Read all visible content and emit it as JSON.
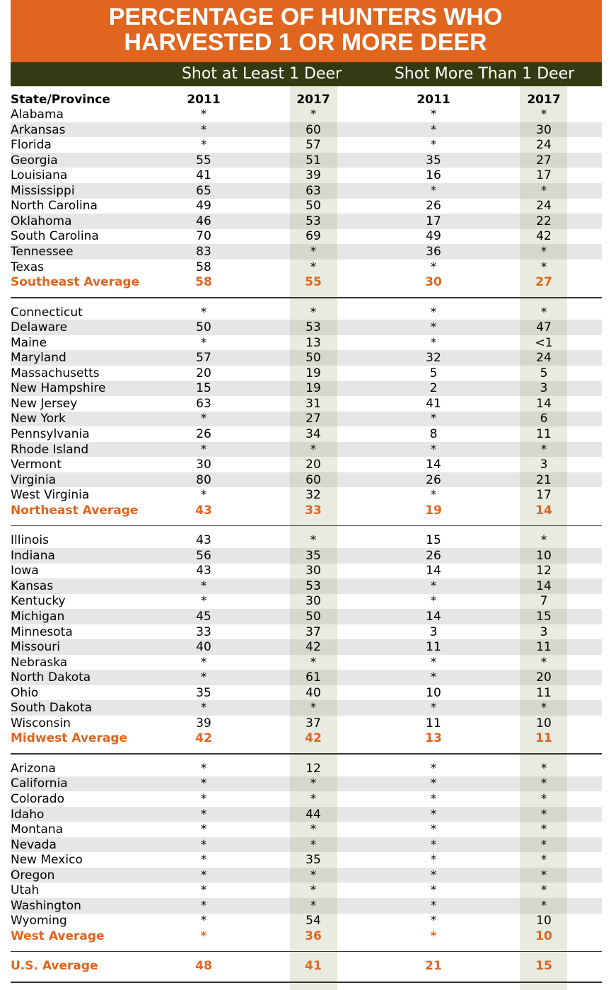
{
  "title": [
    "PERCENTAGE OF HUNTERS WHO",
    "HARVESTED 1 OR MORE DEER"
  ],
  "groups": [
    "Shot at Least 1 Deer",
    "Shot More Than 1 Deer"
  ],
  "columns": [
    "State/Province",
    "2011",
    "2017",
    "2011",
    "2017"
  ],
  "sections": [
    {
      "rows": [
        [
          "Alabama",
          "*",
          "*",
          "*",
          "*"
        ],
        [
          "Arkansas",
          "*",
          "60",
          "*",
          "30"
        ],
        [
          "Florida",
          "*",
          "57",
          "*",
          "24"
        ],
        [
          "Georgia",
          "55",
          "51",
          "35",
          "27"
        ],
        [
          "Louisiana",
          "41",
          "39",
          "16",
          "17"
        ],
        [
          "Mississippi",
          "65",
          "63",
          "*",
          "*"
        ],
        [
          "North Carolina",
          "49",
          "50",
          "26",
          "24"
        ],
        [
          "Oklahoma",
          "46",
          "53",
          "17",
          "22"
        ],
        [
          "South Carolina",
          "70",
          "69",
          "49",
          "42"
        ],
        [
          "Tennessee",
          "83",
          "*",
          "36",
          "*"
        ],
        [
          "Texas",
          "58",
          "*",
          "*",
          "*"
        ]
      ],
      "average": [
        "Southeast Average",
        "58",
        "55",
        "30",
        "27"
      ]
    },
    {
      "rows": [
        [
          "Connecticut",
          "*",
          "*",
          "*",
          "*"
        ],
        [
          "Delaware",
          "50",
          "53",
          "*",
          "47"
        ],
        [
          "Maine",
          "*",
          "13",
          "*",
          "<1"
        ],
        [
          "Maryland",
          "57",
          "50",
          "32",
          "24"
        ],
        [
          "Massachusetts",
          "20",
          "19",
          "5",
          "5"
        ],
        [
          "New Hampshire",
          "15",
          "19",
          "2",
          "3"
        ],
        [
          "New Jersey",
          "63",
          "31",
          "41",
          "14"
        ],
        [
          "New York",
          "*",
          "27",
          "*",
          "6"
        ],
        [
          "Pennsylvania",
          "26",
          "34",
          "8",
          "11"
        ],
        [
          "Rhode Island",
          "*",
          "*",
          "*",
          "*"
        ],
        [
          "Vermont",
          "30",
          "20",
          "14",
          "3"
        ],
        [
          "Virginia",
          "80",
          "60",
          "26",
          "21"
        ],
        [
          "West Virginia",
          "*",
          "32",
          "*",
          "17"
        ]
      ],
      "average": [
        "Northeast Average",
        "43",
        "33",
        "19",
        "14"
      ]
    },
    {
      "rows": [
        [
          "Illinois",
          "43",
          "*",
          "15",
          "*"
        ],
        [
          "Indiana",
          "56",
          "35",
          "26",
          "10"
        ],
        [
          "Iowa",
          "43",
          "30",
          "14",
          "12"
        ],
        [
          "Kansas",
          "*",
          "53",
          "*",
          "14"
        ],
        [
          "Kentucky",
          "*",
          "30",
          "*",
          "7"
        ],
        [
          "Michigan",
          "45",
          "50",
          "14",
          "15"
        ],
        [
          "Minnesota",
          "33",
          "37",
          "3",
          "3"
        ],
        [
          "Missouri",
          "40",
          "42",
          "11",
          "11"
        ],
        [
          "Nebraska",
          "*",
          "*",
          "*",
          "*"
        ],
        [
          "North Dakota",
          "*",
          "61",
          "*",
          "20"
        ],
        [
          "Ohio",
          "35",
          "40",
          "10",
          "11"
        ],
        [
          "South Dakota",
          "*",
          "*",
          "*",
          "*"
        ],
        [
          "Wisconsin",
          "39",
          "37",
          "11",
          "10"
        ]
      ],
      "average": [
        "Midwest Average",
        "42",
        "42",
        "13",
        "11"
      ]
    },
    {
      "rows": [
        [
          "Arizona",
          "*",
          "12",
          "*",
          "*"
        ],
        [
          "California",
          "*",
          "*",
          "*",
          "*"
        ],
        [
          "Colorado",
          "*",
          "*",
          "*",
          "*"
        ],
        [
          "Idaho",
          "*",
          "44",
          "*",
          "*"
        ],
        [
          "Montana",
          "*",
          "*",
          "*",
          "*"
        ],
        [
          "Nevada",
          "*",
          "*",
          "*",
          "*"
        ],
        [
          "New Mexico",
          "*",
          "35",
          "*",
          "*"
        ],
        [
          "Oregon",
          "*",
          "*",
          "*",
          "*"
        ],
        [
          "Utah",
          "*",
          "*",
          "*",
          "*"
        ],
        [
          "Washington",
          "*",
          "*",
          "*",
          "*"
        ],
        [
          "Wyoming",
          "*",
          "54",
          "*",
          "10"
        ]
      ],
      "average": [
        "West Average",
        "*",
        "36",
        "*",
        "10"
      ]
    }
  ],
  "us_average": [
    "U.S. Average",
    "48",
    "41",
    "21",
    "15"
  ]
}
